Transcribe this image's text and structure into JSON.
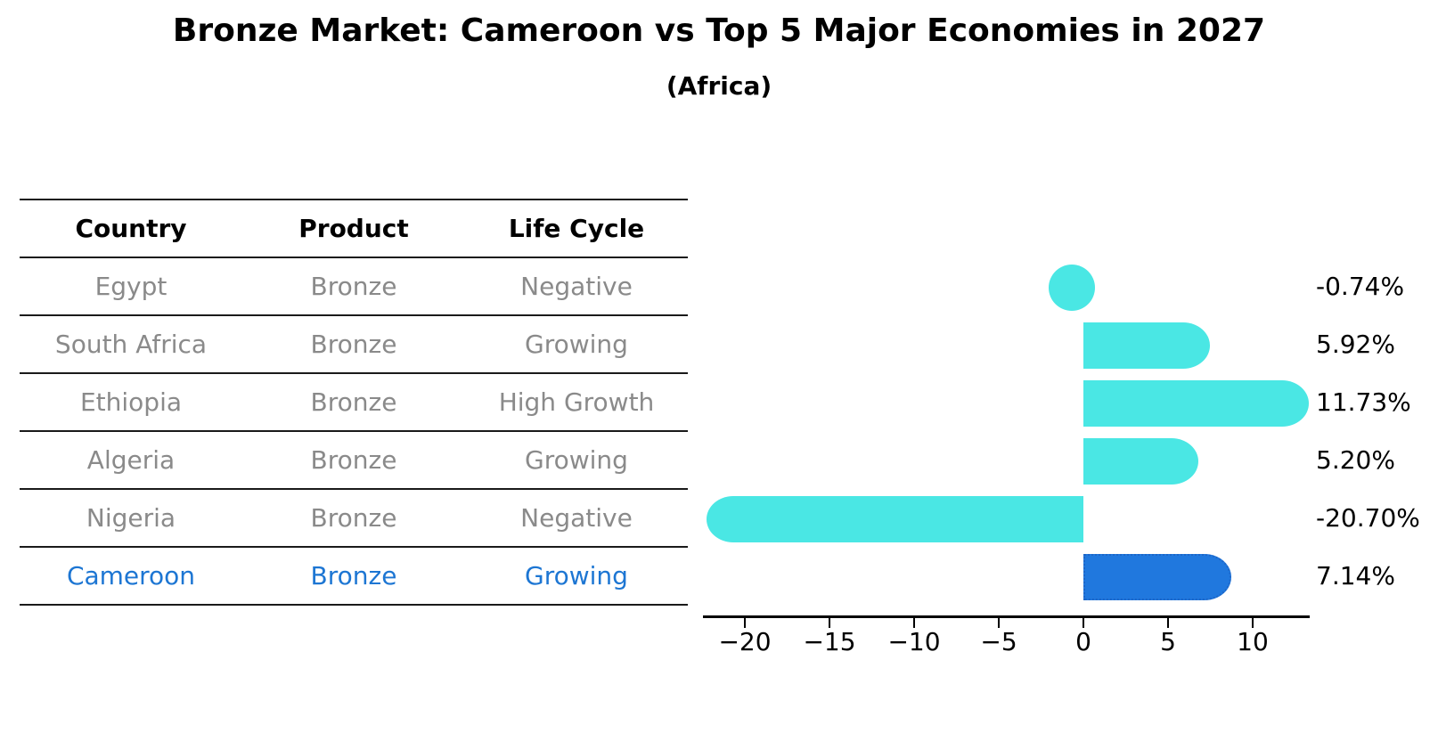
{
  "title": "Bronze Market: Cameroon vs Top 5 Major Economies in 2027",
  "subtitle": "(Africa)",
  "table": {
    "columns": [
      "Country",
      "Product",
      "Life Cycle"
    ],
    "rows": [
      {
        "country": "Egypt",
        "product": "Bronze",
        "life_cycle": "Negative",
        "highlight": false
      },
      {
        "country": "South Africa",
        "product": "Bronze",
        "life_cycle": "Growing",
        "highlight": false
      },
      {
        "country": "Ethiopia",
        "product": "Bronze",
        "life_cycle": "High Growth",
        "highlight": false
      },
      {
        "country": "Algeria",
        "product": "Bronze",
        "life_cycle": "Growing",
        "highlight": false
      },
      {
        "country": "Nigeria",
        "product": "Bronze",
        "life_cycle": "Negative",
        "highlight": false
      },
      {
        "country": "Cameroon",
        "product": "Bronze",
        "life_cycle": "Growing",
        "highlight": true
      }
    ]
  },
  "chart_data": {
    "type": "bar",
    "orientation": "horizontal",
    "categories": [
      "Egypt",
      "South Africa",
      "Ethiopia",
      "Algeria",
      "Nigeria",
      "Cameroon"
    ],
    "values": [
      -0.74,
      5.92,
      11.73,
      5.2,
      -20.7,
      7.14
    ],
    "value_labels": [
      "-0.74%",
      "5.92%",
      "11.73%",
      "5.20%",
      "-20.70%",
      "7.14%"
    ],
    "x_ticks": [
      -20,
      -15,
      -10,
      -5,
      0,
      5,
      10
    ],
    "x_tick_labels": [
      "−20",
      "−15",
      "−10",
      "−5",
      "0",
      "5",
      "10"
    ],
    "xlim": [
      -22.5,
      13.4
    ],
    "grid": false,
    "legend": "none",
    "highlight_category": "Cameroon",
    "colors": {
      "bar": "#4ae7e4",
      "highlight_bar": "#2078de",
      "highlight_bar_border": "#1d66c8",
      "highlight_text": "#1d76d3",
      "table_text": "#8a8a8a",
      "axis": "#000000"
    }
  }
}
